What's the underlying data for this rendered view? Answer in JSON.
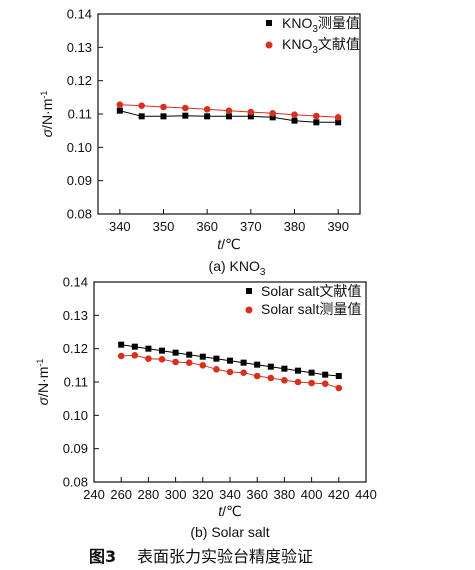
{
  "chart_data": [
    {
      "type": "line",
      "caption": "(a) KNO",
      "caption_sub": "3",
      "xlabel_italic": "t",
      "xlabel_rest": "/℃",
      "ylabel_italic": "σ",
      "ylabel_rest": "/N·m",
      "ylabel_sup": "-1",
      "xlim": [
        335,
        395
      ],
      "ylim": [
        0.08,
        0.14
      ],
      "xticks": [
        "340",
        "350",
        "360",
        "370",
        "380",
        "390"
      ],
      "xtick_values": [
        340,
        350,
        360,
        370,
        380,
        390
      ],
      "yticks": [
        "0.08",
        "0.09",
        "0.10",
        "0.11",
        "0.12",
        "0.13",
        "0.14"
      ],
      "ytick_values": [
        0.08,
        0.09,
        0.1,
        0.11,
        0.12,
        0.13,
        0.14
      ],
      "series": [
        {
          "name_main": "KNO",
          "name_sub": "3",
          "name_rest": "测量值",
          "color": "#000000",
          "marker": "square",
          "x": [
            340,
            345,
            350,
            355,
            360,
            365,
            370,
            375,
            380,
            385,
            390
          ],
          "y": [
            0.111,
            0.1093,
            0.1093,
            0.1095,
            0.1093,
            0.1093,
            0.1093,
            0.109,
            0.108,
            0.1075,
            0.1075
          ]
        },
        {
          "name_main": "KNO",
          "name_sub": "3",
          "name_rest": "文献值",
          "color": "#d7301f",
          "marker": "circle",
          "x": [
            340,
            345,
            350,
            355,
            360,
            365,
            370,
            375,
            380,
            385,
            390
          ],
          "y": [
            0.1128,
            0.1125,
            0.1121,
            0.1118,
            0.1114,
            0.111,
            0.1106,
            0.1102,
            0.1098,
            0.1094,
            0.109
          ]
        }
      ]
    },
    {
      "type": "line",
      "caption": "(b) Solar salt",
      "xlabel_italic": "t",
      "xlabel_rest": "/℃",
      "ylabel_italic": "σ",
      "ylabel_rest": "/N·m",
      "ylabel_sup": "-1",
      "xlim": [
        240,
        440
      ],
      "ylim": [
        0.08,
        0.14
      ],
      "xticks": [
        "240",
        "260",
        "280",
        "300",
        "320",
        "340",
        "360",
        "380",
        "400",
        "420",
        "440"
      ],
      "xtick_values": [
        240,
        260,
        280,
        300,
        320,
        340,
        360,
        380,
        400,
        420,
        440
      ],
      "yticks": [
        "0.08",
        "0.09",
        "0.10",
        "0.11",
        "0.12",
        "0.13",
        "0.14"
      ],
      "ytick_values": [
        0.08,
        0.09,
        0.1,
        0.11,
        0.12,
        0.13,
        0.14
      ],
      "series": [
        {
          "name": "Solar salt文献值",
          "color": "#000000",
          "marker": "square",
          "x": [
            260,
            270,
            280,
            290,
            300,
            310,
            320,
            330,
            340,
            350,
            360,
            370,
            380,
            390,
            400,
            410,
            420
          ],
          "y": [
            0.1212,
            0.1206,
            0.12,
            0.1194,
            0.1188,
            0.1182,
            0.1176,
            0.117,
            0.1164,
            0.1158,
            0.1152,
            0.1146,
            0.114,
            0.1134,
            0.1128,
            0.1122,
            0.1118
          ]
        },
        {
          "name": "Solar salt测量值",
          "color": "#d7301f",
          "marker": "circle",
          "x": [
            260,
            270,
            280,
            290,
            300,
            310,
            320,
            330,
            340,
            350,
            360,
            370,
            380,
            390,
            400,
            410,
            420
          ],
          "y": [
            0.1178,
            0.118,
            0.117,
            0.1168,
            0.116,
            0.1158,
            0.115,
            0.1138,
            0.113,
            0.1128,
            0.1118,
            0.1112,
            0.1105,
            0.11,
            0.1097,
            0.1095,
            0.1082
          ]
        }
      ]
    }
  ],
  "figure_caption": {
    "label": "图3",
    "text": "表面张力实验台精度验证"
  }
}
